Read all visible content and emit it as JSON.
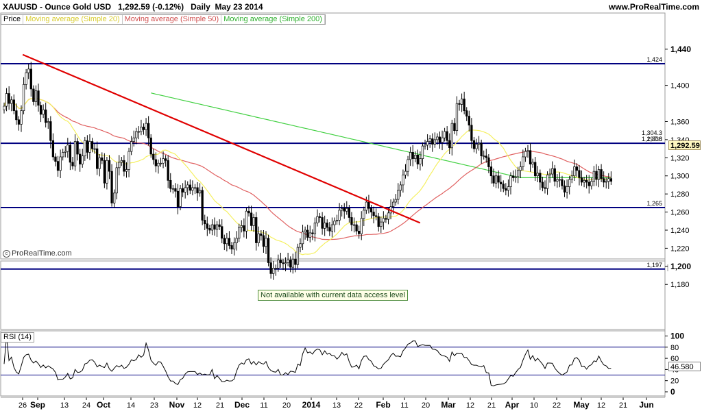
{
  "header": {
    "symbol": "XAUUSD - Ounce Gold USD",
    "quote": "1,292.59 (-0.12%)",
    "period": "Daily",
    "date": "May 23 2014",
    "site": "www.ProRealTime.com"
  },
  "legend": {
    "price": "Price",
    "ma20": "Moving average (Simple 20)",
    "ma50": "Moving average (Simple 50)",
    "ma200": "Moving average (Simple 200)"
  },
  "colors": {
    "ma20": "#f5f060",
    "ma50": "#e06060",
    "ma200": "#40d040",
    "trendline": "#e00000",
    "levels": "#000080",
    "candle_up": "#ffffff",
    "candle_down": "#000000"
  },
  "credit": "ProRealTime.com",
  "notice": "Not available with current data access level",
  "rsi": {
    "title": "RSI (14)",
    "value": "46.580",
    "axis_ticks": [
      "100",
      "80",
      "60",
      "40",
      "20",
      "0"
    ]
  },
  "price_badge": "1,292.59",
  "chart_data": {
    "type": "candlestick",
    "title": "XAUUSD - Ounce Gold USD",
    "timeframe": "Daily",
    "y_ticks": [
      "1,440",
      "1,400",
      "1,360",
      "1,340",
      "1,320",
      "1,300",
      "1,280",
      "1,260",
      "1,240",
      "1,220",
      "1,200",
      "1,180"
    ],
    "y_tick_values": [
      1440,
      1400,
      1360,
      1340,
      1320,
      1300,
      1280,
      1260,
      1240,
      1220,
      1200,
      1180
    ],
    "ylim": [
      1170,
      1445
    ],
    "x_labels": [
      "26",
      "Sep",
      "13",
      "24",
      "Oct",
      "14",
      "23",
      "Nov",
      "12",
      "21",
      "Dec",
      "11",
      "20",
      "2014",
      "13",
      "22",
      "Feb",
      "11",
      "20",
      "Mar",
      "12",
      "21",
      "Apr",
      "10",
      "22",
      "May",
      "12",
      "21",
      "Jun"
    ],
    "levels": [
      {
        "value": 1424,
        "label": "1,424"
      },
      {
        "value": 1336,
        "label": "1,336"
      },
      {
        "value": 1265,
        "label": "1,265"
      },
      {
        "value": 1197,
        "label": "1,197"
      }
    ],
    "overlay_labels": [
      "1,304.3",
      "1,297.8"
    ],
    "trendline": {
      "from": {
        "bar": 2,
        "value": 1434
      },
      "to": {
        "bar": 189,
        "value": 1248
      }
    },
    "series": [
      {
        "name": "Moving average (Simple 20)"
      },
      {
        "name": "Moving average (Simple 50)"
      },
      {
        "name": "Moving average (Simple 200)"
      }
    ],
    "closes": [
      1377,
      1391,
      1380,
      1384,
      1372,
      1362,
      1357,
      1372,
      1401,
      1414,
      1418,
      1396,
      1382,
      1394,
      1378,
      1368,
      1373,
      1359,
      1360,
      1339,
      1321,
      1316,
      1306,
      1321,
      1326,
      1327,
      1334,
      1315,
      1311,
      1338,
      1324,
      1313,
      1322,
      1339,
      1326,
      1338,
      1330,
      1330,
      1308,
      1320,
      1317,
      1292,
      1317,
      1305,
      1270,
      1281,
      1309,
      1315,
      1317,
      1305,
      1307,
      1327,
      1338,
      1342,
      1349,
      1349,
      1354,
      1351,
      1358,
      1342,
      1324,
      1318,
      1311,
      1314,
      1314,
      1319,
      1317,
      1295,
      1286,
      1286,
      1283,
      1266,
      1286,
      1282,
      1287,
      1290,
      1284,
      1287,
      1287,
      1281,
      1284,
      1251,
      1247,
      1242,
      1240,
      1246,
      1241,
      1246,
      1244,
      1231,
      1225,
      1231,
      1223,
      1219,
      1226,
      1231,
      1243,
      1245,
      1239,
      1261,
      1259,
      1245,
      1254,
      1226,
      1236,
      1234,
      1222,
      1231,
      1204,
      1192,
      1198,
      1198,
      1207,
      1204,
      1203,
      1204,
      1207,
      1199,
      1208,
      1202,
      1221,
      1225,
      1238,
      1240,
      1232,
      1237,
      1236,
      1248,
      1255,
      1254,
      1242,
      1248,
      1243,
      1239,
      1246,
      1250,
      1251,
      1262,
      1264,
      1261,
      1264,
      1254,
      1246,
      1246,
      1239,
      1236,
      1253,
      1262,
      1271,
      1264,
      1260,
      1256,
      1255,
      1244,
      1249,
      1253,
      1252,
      1259,
      1266,
      1271,
      1274,
      1284,
      1290,
      1301,
      1305,
      1318,
      1326,
      1319,
      1323,
      1313,
      1319,
      1333,
      1334,
      1338,
      1341,
      1335,
      1340,
      1343,
      1337,
      1342,
      1349,
      1339,
      1331,
      1358,
      1350,
      1380,
      1379,
      1385,
      1372,
      1366,
      1356,
      1339,
      1330,
      1335,
      1336,
      1322,
      1322,
      1320,
      1310,
      1300,
      1292,
      1300,
      1293,
      1291,
      1286,
      1284,
      1288,
      1300,
      1298,
      1299,
      1306,
      1310,
      1321,
      1327,
      1328,
      1313,
      1315,
      1300,
      1303,
      1293,
      1287,
      1286,
      1301,
      1302,
      1308,
      1294,
      1296,
      1296,
      1289,
      1282,
      1288,
      1296,
      1300,
      1310,
      1306,
      1298,
      1293,
      1295,
      1293,
      1289,
      1294,
      1305,
      1296,
      1307,
      1297,
      1293,
      1294,
      1297,
      1294
    ]
  }
}
